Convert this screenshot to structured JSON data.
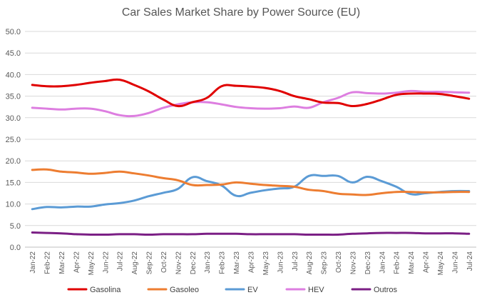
{
  "chart_data": {
    "type": "line",
    "title": "Car Sales Market Share by Power Source (EU)",
    "xlabel": "",
    "ylabel": "",
    "ylim": [
      0,
      50
    ],
    "yticks": [
      "0.0",
      "5.0",
      "10.0",
      "15.0",
      "20.0",
      "25.0",
      "30.0",
      "35.0",
      "40.0",
      "45.0",
      "50.0"
    ],
    "grid": true,
    "legend_position": "bottom",
    "categories": [
      "Jan-22",
      "Feb-22",
      "Mar-22",
      "Apr-22",
      "May-22",
      "Jun-22",
      "Jul-22",
      "Aug-22",
      "Sep-22",
      "Oct-22",
      "Nov-22",
      "Dec-22",
      "Jan-23",
      "Feb-23",
      "Mar-23",
      "Apr-23",
      "May-23",
      "Jun-23",
      "Jul-23",
      "Aug-23",
      "Sep-23",
      "Oct-23",
      "Nov-23",
      "Dec-23",
      "Jan-24",
      "Feb-24",
      "Mar-24",
      "Apr-24",
      "May-24",
      "Jun-24",
      "Jul-24"
    ],
    "series": [
      {
        "name": "Gasolina",
        "color": "#e00000",
        "values": [
          37.6,
          37.3,
          37.3,
          37.6,
          38.1,
          38.5,
          38.8,
          37.6,
          36.1,
          34.2,
          32.7,
          33.6,
          34.6,
          37.3,
          37.4,
          37.2,
          36.9,
          36.2,
          35.0,
          34.3,
          33.5,
          33.4,
          32.7,
          33.2,
          34.2,
          35.3,
          35.6,
          35.6,
          35.5,
          35.0,
          34.4
        ]
      },
      {
        "name": "Gasoleo",
        "color": "#ed7d31",
        "values": [
          17.9,
          18.0,
          17.5,
          17.3,
          17.0,
          17.2,
          17.5,
          17.1,
          16.6,
          16.0,
          15.5,
          14.4,
          14.4,
          14.5,
          15.0,
          14.7,
          14.4,
          14.2,
          14.0,
          13.3,
          13.0,
          12.4,
          12.2,
          12.1,
          12.5,
          12.8,
          12.8,
          12.7,
          12.7,
          12.8,
          12.8
        ]
      },
      {
        "name": "EV",
        "color": "#5b9bd5",
        "values": [
          8.8,
          9.3,
          9.2,
          9.4,
          9.4,
          9.9,
          10.2,
          10.8,
          11.8,
          12.6,
          13.5,
          16.2,
          15.3,
          14.3,
          11.9,
          12.6,
          13.2,
          13.6,
          14.0,
          16.5,
          16.5,
          16.5,
          15.0,
          16.3,
          15.3,
          14.0,
          12.3,
          12.5,
          12.8,
          13.0,
          13.0
        ]
      },
      {
        "name": "HEV",
        "color": "#dd7ee0",
        "values": [
          32.3,
          32.1,
          31.9,
          32.1,
          32.1,
          31.5,
          30.6,
          30.4,
          31.1,
          32.3,
          33.1,
          33.6,
          33.6,
          33.1,
          32.5,
          32.2,
          32.1,
          32.2,
          32.6,
          32.3,
          33.6,
          34.6,
          35.9,
          35.7,
          35.6,
          35.8,
          36.2,
          36.0,
          36.0,
          35.9,
          35.8
        ]
      },
      {
        "name": "Outros",
        "color": "#7b1f85",
        "values": [
          3.4,
          3.3,
          3.2,
          3.0,
          2.9,
          2.9,
          3.0,
          3.0,
          2.9,
          3.0,
          3.0,
          3.0,
          3.1,
          3.1,
          3.1,
          3.0,
          3.0,
          3.0,
          3.0,
          2.9,
          2.9,
          2.9,
          3.1,
          3.2,
          3.3,
          3.3,
          3.3,
          3.2,
          3.2,
          3.2,
          3.1
        ]
      }
    ]
  }
}
